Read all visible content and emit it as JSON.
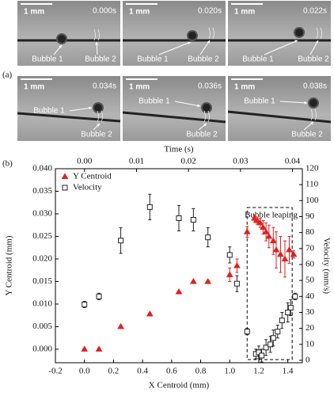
{
  "figure_labels": {
    "a": "(a)",
    "b": "(b)"
  },
  "panels": [
    {
      "scale_bar": "1 mm",
      "time": "0.000s",
      "bubble1": "Bubble 1",
      "bubble2": "Bubble 2"
    },
    {
      "scale_bar": "1 mm",
      "time": "0.020s",
      "bubble1": "Bubble 1",
      "bubble2": "Bubble 2"
    },
    {
      "scale_bar": "1 mm",
      "time": "0.022s",
      "bubble1": "Bubble 1",
      "bubble2": "Bubble 2"
    },
    {
      "scale_bar": "1 mm",
      "time": "0.034s",
      "bubble1": "Bubble 1",
      "bubble2": "Bubble 2"
    },
    {
      "scale_bar": "1 mm",
      "time": "0.036s",
      "bubble1": "Bubble 1",
      "bubble2": "Bubble 2"
    },
    {
      "scale_bar": "1 mm",
      "time": "0.038s",
      "bubble1": "Bubble 1",
      "bubble2": "Bubble 2"
    }
  ],
  "chart_data": {
    "type": "scatter",
    "x_label": "X Centroid (mm)",
    "x2_label": "Time (s)",
    "y_label": "Y Centroid (mm)",
    "y2_label": "Velocity (mm/s)",
    "annotation": "Bubble leaping",
    "legend": "upper left",
    "xlim": [
      -0.2,
      1.5
    ],
    "xticks": [
      -0.2,
      {
        "value": 0,
        "label": "0.0"
      },
      0.2,
      0.4,
      0.6,
      0.8,
      {
        "value": 1,
        "label": "1.0"
      },
      1.2,
      1.4
    ],
    "x2lim": [
      -0.0056,
      0.0419
    ],
    "x2ticks": [
      {
        "value": 0,
        "label": "0.00"
      },
      0.01,
      0.02,
      0.03,
      0.04
    ],
    "ylim": [
      -0.003,
      0.04
    ],
    "yticks": [
      {
        "value": 0,
        "label": "0.000"
      },
      {
        "value": 0.005,
        "label": "0.005"
      },
      {
        "value": 0.01,
        "label": "0.010"
      },
      {
        "value": 0.015,
        "label": "0.015"
      },
      {
        "value": 0.02,
        "label": "0.020"
      },
      {
        "value": 0.025,
        "label": "0.025"
      },
      {
        "value": 0.03,
        "label": "0.030"
      },
      {
        "value": 0.035,
        "label": "0.035"
      },
      {
        "value": 0.04,
        "label": "0.040"
      }
    ],
    "y2lim": [
      -1.5,
      120
    ],
    "y2ticks": [
      0,
      10,
      20,
      30,
      40,
      50,
      60,
      70,
      80,
      90,
      100,
      110,
      120
    ],
    "series": [
      {
        "name": "Y Centroid",
        "color": "#e02020",
        "marker": "triangle",
        "axis": "y",
        "x": [
          0,
          0.1,
          0.25,
          0.45,
          0.65,
          0.75,
          0.85,
          1.0,
          1.05,
          1.12,
          1.17,
          1.19,
          1.21,
          1.23,
          1.25,
          1.27,
          1.3,
          1.32,
          1.35,
          1.38,
          1.41,
          1.44
        ],
        "values": [
          0,
          0,
          0.005,
          0.0078,
          0.0127,
          0.015,
          0.015,
          0.0165,
          0.0185,
          0.026,
          0.029,
          0.0285,
          0.028,
          0.027,
          0.026,
          0.025,
          0.024,
          0.022,
          0.021,
          0.02,
          0.022,
          0.021
        ],
        "errors": [
          0.0002,
          0.0002,
          0.0002,
          0.0002,
          0.0002,
          0.0002,
          0.0002,
          0.0015,
          0.0015,
          0.0012,
          0.0008,
          0.0008,
          0.001,
          0.0015,
          0.002,
          0.0025,
          0.003,
          0.004,
          0.004,
          0.004,
          0.003,
          0.0008
        ]
      },
      {
        "name": "Velocity",
        "color": "#222222",
        "marker": "square",
        "axis": "y2",
        "x": [
          0,
          0.1,
          0.25,
          0.45,
          0.65,
          0.75,
          0.85,
          1.0,
          1.05,
          1.12,
          1.18,
          1.2,
          1.22,
          1.25,
          1.28,
          1.3,
          1.33,
          1.36,
          1.4,
          1.42,
          1.45
        ],
        "values": [
          35,
          40,
          75,
          96,
          89,
          88,
          77,
          66,
          48,
          18,
          4,
          5,
          3,
          8,
          10,
          14,
          18,
          25,
          30,
          33,
          40
        ],
        "errors": [
          2,
          2,
          8,
          8,
          8,
          7,
          6,
          5,
          5,
          2,
          3,
          4,
          4,
          5,
          5,
          5,
          4,
          5,
          6,
          5,
          2
        ]
      }
    ]
  }
}
